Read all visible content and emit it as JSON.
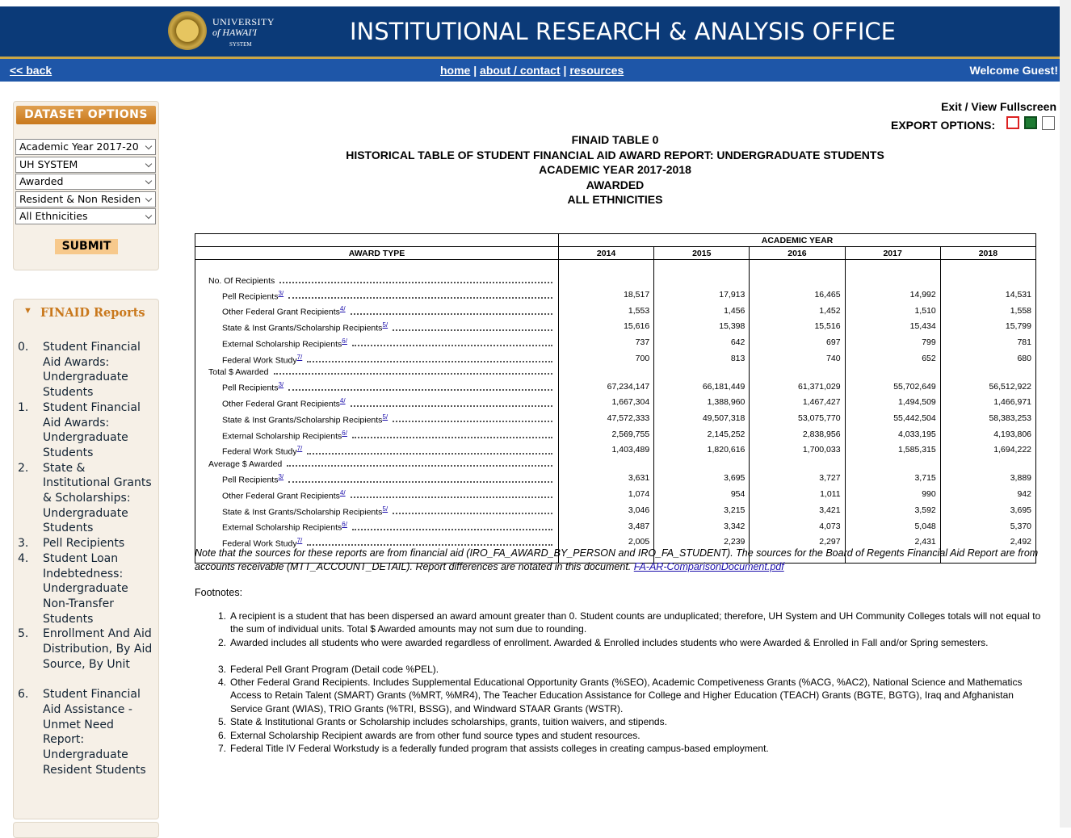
{
  "header": {
    "logo_line1": "UNIVERSITY",
    "logo_line2": "of HAWAI'I",
    "logo_line3": "SYSTEM",
    "title": "INSTITUTIONAL RESEARCH & ANALYSIS OFFICE"
  },
  "nav": {
    "back": "<< back",
    "links": [
      "home",
      "about / contact",
      "resources"
    ],
    "separator": "|",
    "welcome": "Welcome",
    "user": "Guest!"
  },
  "sidebar": {
    "dataset_title": "DATASET OPTIONS",
    "selects": [
      "Academic Year 2017-20",
      "UH SYSTEM",
      "Awarded",
      "Resident & Non Residen",
      "All Ethnicities"
    ],
    "submit": "SUBMIT",
    "reports_title": "FINAID Reports",
    "reports": [
      {
        "num": "0.",
        "text": "Student Financial Aid Awards: Undergraduate Students"
      },
      {
        "num": "1.",
        "text": "Student Financial Aid Awards: Undergraduate Students"
      },
      {
        "num": "2.",
        "text": "State & Institutional Grants & Scholarships: Undergraduate Students"
      },
      {
        "num": "3.",
        "text": "Pell Recipients"
      },
      {
        "num": "4.",
        "text": "Student Loan Indebtedness: Undergraduate Non-Transfer Students"
      },
      {
        "num": "5.",
        "text": "Enrollment And Aid Distribution, By Aid Source, By Unit"
      },
      {
        "num": "6.",
        "text": "Student Financial Aid Assistance - Unmet Need Report: Undergraduate Resident Students"
      }
    ]
  },
  "main": {
    "exit": "Exit / View Fullscreen",
    "export": "EXPORT OPTIONS:",
    "titles": [
      "FINAID TABLE 0",
      "HISTORICAL TABLE OF STUDENT FINANCIAL AID AWARD REPORT: UNDERGRADUATE STUDENTS",
      "ACADEMIC YEAR 2017-2018",
      "AWARDED",
      "ALL ETHNICITIES"
    ]
  },
  "table": {
    "award_type": "AWARD TYPE",
    "academic_year": "ACADEMIC YEAR",
    "years": [
      "2014",
      "2015",
      "2016",
      "2017",
      "2018"
    ],
    "sections": [
      {
        "label": "No. Of Recipients",
        "rows": [
          {
            "label": "Pell Recipients",
            "note": "3/",
            "values": [
              "18,517",
              "17,913",
              "16,465",
              "14,992",
              "14,531"
            ]
          },
          {
            "label": "Other Federal Grant Recipients",
            "note": "4/",
            "values": [
              "1,553",
              "1,456",
              "1,452",
              "1,510",
              "1,558"
            ]
          },
          {
            "label": "State & Inst Grants/Scholarship Recipients",
            "note": "5/",
            "values": [
              "15,616",
              "15,398",
              "15,516",
              "15,434",
              "15,799"
            ]
          },
          {
            "label": "External Scholarship Recipients",
            "note": "6/",
            "values": [
              "737",
              "642",
              "697",
              "799",
              "781"
            ]
          },
          {
            "label": "Federal Work Study",
            "note": "7/",
            "values": [
              "700",
              "813",
              "740",
              "652",
              "680"
            ]
          }
        ]
      },
      {
        "label": "Total $ Awarded",
        "rows": [
          {
            "label": "Pell Recipients",
            "note": "3/",
            "values": [
              "67,234,147",
              "66,181,449",
              "61,371,029",
              "55,702,649",
              "56,512,922"
            ]
          },
          {
            "label": "Other Federal Grant Recipients",
            "note": "4/",
            "values": [
              "1,667,304",
              "1,388,960",
              "1,467,427",
              "1,494,509",
              "1,466,971"
            ]
          },
          {
            "label": "State & Inst Grants/Scholarship Recipients",
            "note": "5/",
            "values": [
              "47,572,333",
              "49,507,318",
              "53,075,770",
              "55,442,504",
              "58,383,253"
            ]
          },
          {
            "label": "External Scholarship Recipients",
            "note": "6/",
            "values": [
              "2,569,755",
              "2,145,252",
              "2,838,956",
              "4,033,195",
              "4,193,806"
            ]
          },
          {
            "label": "Federal Work Study",
            "note": "7/",
            "values": [
              "1,403,489",
              "1,820,616",
              "1,700,033",
              "1,585,315",
              "1,694,222"
            ]
          }
        ]
      },
      {
        "label": "Average $ Awarded",
        "rows": [
          {
            "label": "Pell Recipients",
            "note": "3/",
            "values": [
              "3,631",
              "3,695",
              "3,727",
              "3,715",
              "3,889"
            ]
          },
          {
            "label": "Other Federal Grant Recipients",
            "note": "4/",
            "values": [
              "1,074",
              "954",
              "1,011",
              "990",
              "942"
            ]
          },
          {
            "label": "State & Inst Grants/Scholarship Recipients",
            "note": "5/",
            "values": [
              "3,046",
              "3,215",
              "3,421",
              "3,592",
              "3,695"
            ]
          },
          {
            "label": "External Scholarship Recipients",
            "note": "6/",
            "values": [
              "3,487",
              "3,342",
              "4,073",
              "5,048",
              "5,370"
            ]
          },
          {
            "label": "Federal Work Study",
            "note": "7/",
            "values": [
              "2,005",
              "2,239",
              "2,297",
              "2,431",
              "2,492"
            ]
          }
        ]
      }
    ]
  },
  "notes": {
    "text": "Note that the sources for these reports are from financial aid (IRO_FA_AWARD_BY_PERSON and IRO_FA_STUDENT). The sources for the Board of Regents Financial Aid Report are from accounts receivable (MTT_ACCOUNT_DETAIL). Report differences are notated in this document.",
    "link": "FA-AR-ComparisonDocument.pdf",
    "footnotes_title": "Footnotes:",
    "footnotes": [
      {
        "num": "1.",
        "text": "A recipient is a student that has been dispersed an award amount greater than 0. Student counts are unduplicated; therefore, UH System and UH Community Colleges totals will not equal to the sum of individual units. Total $ Awarded amounts may not sum due to rounding."
      },
      {
        "num": "2.",
        "text": "Awarded includes all students who were awarded regardless of enrollment. Awarded & Enrolled includes students who were Awarded & Enrolled in Fall and/or Spring semesters."
      },
      {
        "num": "3.",
        "text": "Federal Pell Grant Program (Detail code %PEL)."
      },
      {
        "num": "4.",
        "text": "Other Federal Grand Recipients. Includes Supplemental Educational Opportunity Grants (%SEO), Academic Competiveness Grants (%ACG, %AC2), National Science and Mathematics Access to Retain Talent (SMART) Grants (%MRT, %MR4), The Teacher Education Assistance for College and Higher Education (TEACH) Grants (BGTE, BGTG), Iraq and Afghanistan Service Grant (WIAS), TRIO Grants (%TRI, BSSG), and Windward STAAR Grants (WSTR)."
      },
      {
        "num": "5.",
        "text": "State & Institutional Grants or Scholarship includes scholarships, grants, tuition waivers, and stipends."
      },
      {
        "num": "6.",
        "text": "External Scholarship Recipient awards are from other fund source types and student resources."
      },
      {
        "num": "7.",
        "text": "Federal Title IV Federal Workstudy is a federally funded program that assists colleges in creating campus-based employment."
      }
    ]
  }
}
